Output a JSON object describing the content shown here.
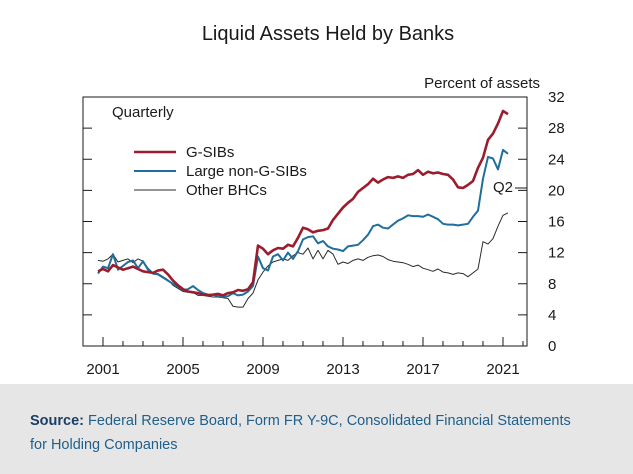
{
  "source": {
    "label": "Source:",
    "text": "Federal Reserve Board, Form FR Y-9C, Consolidated Financial Statements for Holding Companies"
  },
  "chart_data": {
    "type": "line",
    "title": "Liquid Assets Held by Banks",
    "ylabel": "Percent of assets",
    "frequency_note": "Quarterly",
    "end_annotation": "Q2",
    "xlim": [
      2000.0,
      2022.2
    ],
    "ylim": [
      0,
      32
    ],
    "x_ticks": [
      2001,
      2005,
      2009,
      2013,
      2017,
      2021
    ],
    "y_ticks": [
      0,
      4,
      8,
      12,
      16,
      20,
      24,
      28,
      32
    ],
    "grid": false,
    "legend_position": "upper-left",
    "colors": {
      "G-SIBs": "#9b1c2c",
      "Large non-G-SIBs": "#1f6e9c",
      "Other BHCs": "#2b2b2b"
    },
    "series": [
      {
        "name": "G-SIBs",
        "points": [
          [
            2000.75,
            9.6
          ],
          [
            2001.0,
            9.9
          ],
          [
            2001.25,
            9.6
          ],
          [
            2001.5,
            10.4
          ],
          [
            2001.75,
            10.1
          ],
          [
            2002.0,
            9.8
          ],
          [
            2002.25,
            10.0
          ],
          [
            2002.5,
            10.2
          ],
          [
            2002.75,
            9.9
          ],
          [
            2003.0,
            9.6
          ],
          [
            2003.25,
            9.5
          ],
          [
            2003.5,
            9.4
          ],
          [
            2003.75,
            9.7
          ],
          [
            2004.0,
            9.8
          ],
          [
            2004.25,
            9.2
          ],
          [
            2004.5,
            8.4
          ],
          [
            2004.75,
            7.8
          ],
          [
            2005.0,
            7.3
          ],
          [
            2005.25,
            7.0
          ],
          [
            2005.5,
            6.9
          ],
          [
            2005.75,
            6.8
          ],
          [
            2006.0,
            6.6
          ],
          [
            2006.25,
            6.5
          ],
          [
            2006.5,
            6.6
          ],
          [
            2006.75,
            6.7
          ],
          [
            2007.0,
            6.5
          ],
          [
            2007.25,
            6.8
          ],
          [
            2007.5,
            6.9
          ],
          [
            2007.75,
            7.2
          ],
          [
            2008.0,
            7.1
          ],
          [
            2008.25,
            7.3
          ],
          [
            2008.5,
            8.2
          ],
          [
            2008.75,
            12.9
          ],
          [
            2009.0,
            12.5
          ],
          [
            2009.25,
            11.8
          ],
          [
            2009.5,
            12.3
          ],
          [
            2009.75,
            12.6
          ],
          [
            2010.0,
            12.5
          ],
          [
            2010.25,
            13.0
          ],
          [
            2010.5,
            12.8
          ],
          [
            2010.75,
            13.9
          ],
          [
            2011.0,
            15.2
          ],
          [
            2011.25,
            15.0
          ],
          [
            2011.5,
            14.6
          ],
          [
            2011.75,
            14.8
          ],
          [
            2012.0,
            14.9
          ],
          [
            2012.25,
            15.1
          ],
          [
            2012.5,
            16.2
          ],
          [
            2012.75,
            17.0
          ],
          [
            2013.0,
            17.8
          ],
          [
            2013.25,
            18.4
          ],
          [
            2013.5,
            18.9
          ],
          [
            2013.75,
            19.8
          ],
          [
            2014.0,
            20.3
          ],
          [
            2014.25,
            20.8
          ],
          [
            2014.5,
            21.5
          ],
          [
            2014.75,
            21.0
          ],
          [
            2015.0,
            21.4
          ],
          [
            2015.25,
            21.7
          ],
          [
            2015.5,
            21.6
          ],
          [
            2015.75,
            21.8
          ],
          [
            2016.0,
            21.6
          ],
          [
            2016.25,
            22.0
          ],
          [
            2016.5,
            22.1
          ],
          [
            2016.75,
            22.6
          ],
          [
            2017.0,
            22.0
          ],
          [
            2017.25,
            22.4
          ],
          [
            2017.5,
            22.2
          ],
          [
            2017.75,
            22.3
          ],
          [
            2018.0,
            22.1
          ],
          [
            2018.25,
            22.0
          ],
          [
            2018.5,
            21.4
          ],
          [
            2018.75,
            20.4
          ],
          [
            2019.0,
            20.3
          ],
          [
            2019.25,
            20.7
          ],
          [
            2019.5,
            21.2
          ],
          [
            2019.75,
            22.9
          ],
          [
            2020.0,
            24.2
          ],
          [
            2020.25,
            26.5
          ],
          [
            2020.5,
            27.3
          ],
          [
            2020.75,
            28.6
          ],
          [
            2021.0,
            30.2
          ],
          [
            2021.25,
            29.8
          ]
        ]
      },
      {
        "name": "Large non-G-SIBs",
        "points": [
          [
            2000.75,
            9.3
          ],
          [
            2001.0,
            10.2
          ],
          [
            2001.25,
            10.0
          ],
          [
            2001.5,
            11.8
          ],
          [
            2001.75,
            9.8
          ],
          [
            2002.0,
            10.3
          ],
          [
            2002.25,
            10.8
          ],
          [
            2002.5,
            11.0
          ],
          [
            2002.75,
            10.0
          ],
          [
            2003.0,
            10.9
          ],
          [
            2003.25,
            9.8
          ],
          [
            2003.5,
            9.3
          ],
          [
            2003.75,
            9.2
          ],
          [
            2004.0,
            8.8
          ],
          [
            2004.25,
            8.4
          ],
          [
            2004.5,
            8.0
          ],
          [
            2004.75,
            7.6
          ],
          [
            2005.0,
            7.2
          ],
          [
            2005.25,
            7.3
          ],
          [
            2005.5,
            7.7
          ],
          [
            2005.75,
            7.2
          ],
          [
            2006.0,
            6.8
          ],
          [
            2006.25,
            6.6
          ],
          [
            2006.5,
            6.6
          ],
          [
            2006.75,
            6.4
          ],
          [
            2007.0,
            6.3
          ],
          [
            2007.25,
            6.4
          ],
          [
            2007.5,
            6.8
          ],
          [
            2007.75,
            6.5
          ],
          [
            2008.0,
            6.6
          ],
          [
            2008.25,
            7.0
          ],
          [
            2008.5,
            7.7
          ],
          [
            2008.75,
            11.5
          ],
          [
            2009.0,
            10.0
          ],
          [
            2009.25,
            9.7
          ],
          [
            2009.5,
            11.5
          ],
          [
            2009.75,
            11.8
          ],
          [
            2010.0,
            11.0
          ],
          [
            2010.25,
            12.0
          ],
          [
            2010.5,
            11.2
          ],
          [
            2010.75,
            12.2
          ],
          [
            2011.0,
            13.7
          ],
          [
            2011.25,
            14.0
          ],
          [
            2011.5,
            14.1
          ],
          [
            2011.75,
            13.2
          ],
          [
            2012.0,
            13.5
          ],
          [
            2012.25,
            12.8
          ],
          [
            2012.5,
            12.5
          ],
          [
            2012.75,
            12.4
          ],
          [
            2013.0,
            12.2
          ],
          [
            2013.25,
            12.8
          ],
          [
            2013.5,
            12.9
          ],
          [
            2013.75,
            13.0
          ],
          [
            2014.0,
            13.6
          ],
          [
            2014.25,
            14.3
          ],
          [
            2014.5,
            15.4
          ],
          [
            2014.75,
            15.6
          ],
          [
            2015.0,
            15.2
          ],
          [
            2015.25,
            15.1
          ],
          [
            2015.5,
            15.6
          ],
          [
            2015.75,
            16.1
          ],
          [
            2016.0,
            16.4
          ],
          [
            2016.25,
            16.8
          ],
          [
            2016.5,
            16.7
          ],
          [
            2016.75,
            16.7
          ],
          [
            2017.0,
            16.6
          ],
          [
            2017.25,
            16.9
          ],
          [
            2017.5,
            16.6
          ],
          [
            2017.75,
            16.3
          ],
          [
            2018.0,
            15.7
          ],
          [
            2018.25,
            15.6
          ],
          [
            2018.5,
            15.6
          ],
          [
            2018.75,
            15.5
          ],
          [
            2019.0,
            15.6
          ],
          [
            2019.25,
            15.7
          ],
          [
            2019.5,
            16.6
          ],
          [
            2019.75,
            17.4
          ],
          [
            2020.0,
            21.5
          ],
          [
            2020.25,
            24.3
          ],
          [
            2020.5,
            24.1
          ],
          [
            2020.75,
            22.7
          ],
          [
            2021.0,
            25.2
          ],
          [
            2021.25,
            24.7
          ]
        ]
      },
      {
        "name": "Other BHCs",
        "points": [
          [
            2000.75,
            11.0
          ],
          [
            2001.0,
            10.9
          ],
          [
            2001.25,
            11.2
          ],
          [
            2001.5,
            11.8
          ],
          [
            2001.75,
            10.8
          ],
          [
            2002.0,
            11.0
          ],
          [
            2002.25,
            11.2
          ],
          [
            2002.5,
            10.7
          ],
          [
            2002.75,
            11.2
          ],
          [
            2003.0,
            10.9
          ],
          [
            2003.25,
            10.0
          ],
          [
            2003.5,
            9.4
          ],
          [
            2003.75,
            9.3
          ],
          [
            2004.0,
            8.9
          ],
          [
            2004.25,
            8.5
          ],
          [
            2004.5,
            7.8
          ],
          [
            2004.75,
            7.4
          ],
          [
            2005.0,
            7.0
          ],
          [
            2005.25,
            6.9
          ],
          [
            2005.5,
            6.9
          ],
          [
            2005.75,
            6.5
          ],
          [
            2006.0,
            6.5
          ],
          [
            2006.25,
            6.4
          ],
          [
            2006.5,
            6.3
          ],
          [
            2006.75,
            6.3
          ],
          [
            2007.0,
            6.2
          ],
          [
            2007.25,
            6.1
          ],
          [
            2007.5,
            5.1
          ],
          [
            2007.75,
            5.0
          ],
          [
            2008.0,
            5.0
          ],
          [
            2008.25,
            6.1
          ],
          [
            2008.5,
            6.8
          ],
          [
            2008.75,
            8.5
          ],
          [
            2009.0,
            9.5
          ],
          [
            2009.25,
            10.3
          ],
          [
            2009.5,
            10.8
          ],
          [
            2009.75,
            11.0
          ],
          [
            2010.0,
            11.2
          ],
          [
            2010.25,
            11.0
          ],
          [
            2010.5,
            11.6
          ],
          [
            2010.75,
            12.0
          ],
          [
            2011.0,
            11.8
          ],
          [
            2011.25,
            12.6
          ],
          [
            2011.5,
            11.2
          ],
          [
            2011.75,
            12.3
          ],
          [
            2012.0,
            11.2
          ],
          [
            2012.25,
            12.3
          ],
          [
            2012.5,
            11.8
          ],
          [
            2012.75,
            10.5
          ],
          [
            2013.0,
            10.8
          ],
          [
            2013.25,
            10.6
          ],
          [
            2013.5,
            11.0
          ],
          [
            2013.75,
            11.2
          ],
          [
            2014.0,
            11.0
          ],
          [
            2014.25,
            11.4
          ],
          [
            2014.5,
            11.6
          ],
          [
            2014.75,
            11.7
          ],
          [
            2015.0,
            11.5
          ],
          [
            2015.25,
            11.1
          ],
          [
            2015.5,
            10.9
          ],
          [
            2015.75,
            10.8
          ],
          [
            2016.0,
            10.7
          ],
          [
            2016.25,
            10.5
          ],
          [
            2016.5,
            10.2
          ],
          [
            2016.75,
            10.4
          ],
          [
            2017.0,
            10.0
          ],
          [
            2017.25,
            9.8
          ],
          [
            2017.5,
            9.6
          ],
          [
            2017.75,
            9.9
          ],
          [
            2018.0,
            9.5
          ],
          [
            2018.25,
            9.4
          ],
          [
            2018.5,
            9.2
          ],
          [
            2018.75,
            9.4
          ],
          [
            2019.0,
            9.3
          ],
          [
            2019.25,
            8.9
          ],
          [
            2019.5,
            9.4
          ],
          [
            2019.75,
            9.9
          ],
          [
            2020.0,
            13.4
          ],
          [
            2020.25,
            13.1
          ],
          [
            2020.5,
            13.8
          ],
          [
            2020.75,
            15.4
          ],
          [
            2021.0,
            16.8
          ],
          [
            2021.25,
            17.1
          ]
        ]
      }
    ]
  }
}
